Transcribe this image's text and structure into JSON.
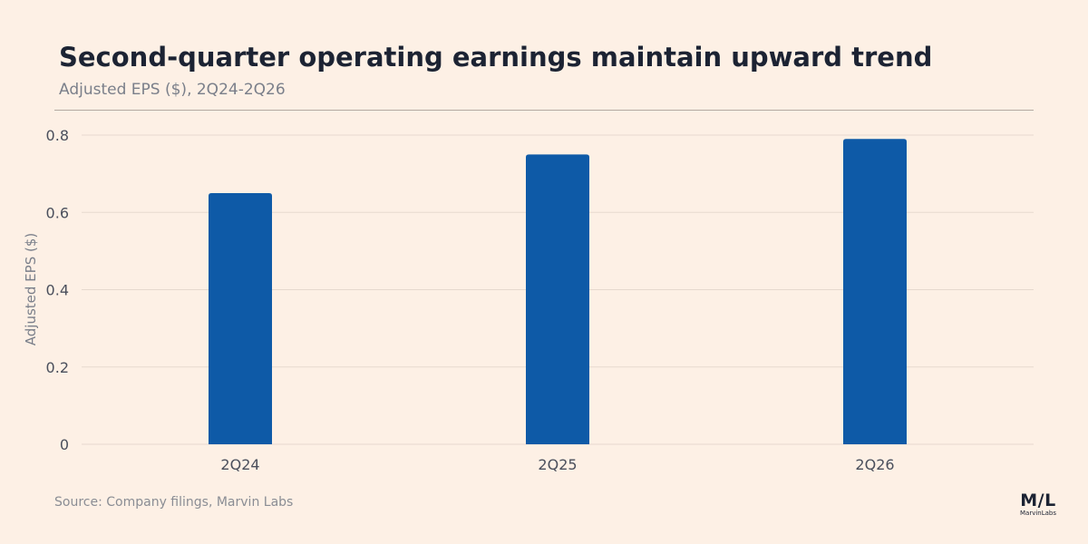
{
  "chart_data": {
    "type": "bar",
    "title": "Second-quarter operating earnings maintain upward trend",
    "subtitle": "Adjusted EPS ($), 2Q24-2Q26",
    "ylabel": "Adjusted EPS ($)",
    "xlabel": "",
    "categories": [
      "2Q24",
      "2Q25",
      "2Q26"
    ],
    "values": [
      0.65,
      0.75,
      0.79
    ],
    "ylim": [
      0,
      0.8
    ],
    "yticks": [
      0,
      0.2,
      0.4,
      0.6,
      0.8
    ],
    "ytick_labels": [
      "0",
      "0.2",
      "0.4",
      "0.6",
      "0.8"
    ],
    "grid": true,
    "bar_color": "#0e5aa7",
    "source": "Source: Company filings, Marvin Labs"
  },
  "brand": {
    "mark": "M/L",
    "name": "MarvinLabs"
  }
}
